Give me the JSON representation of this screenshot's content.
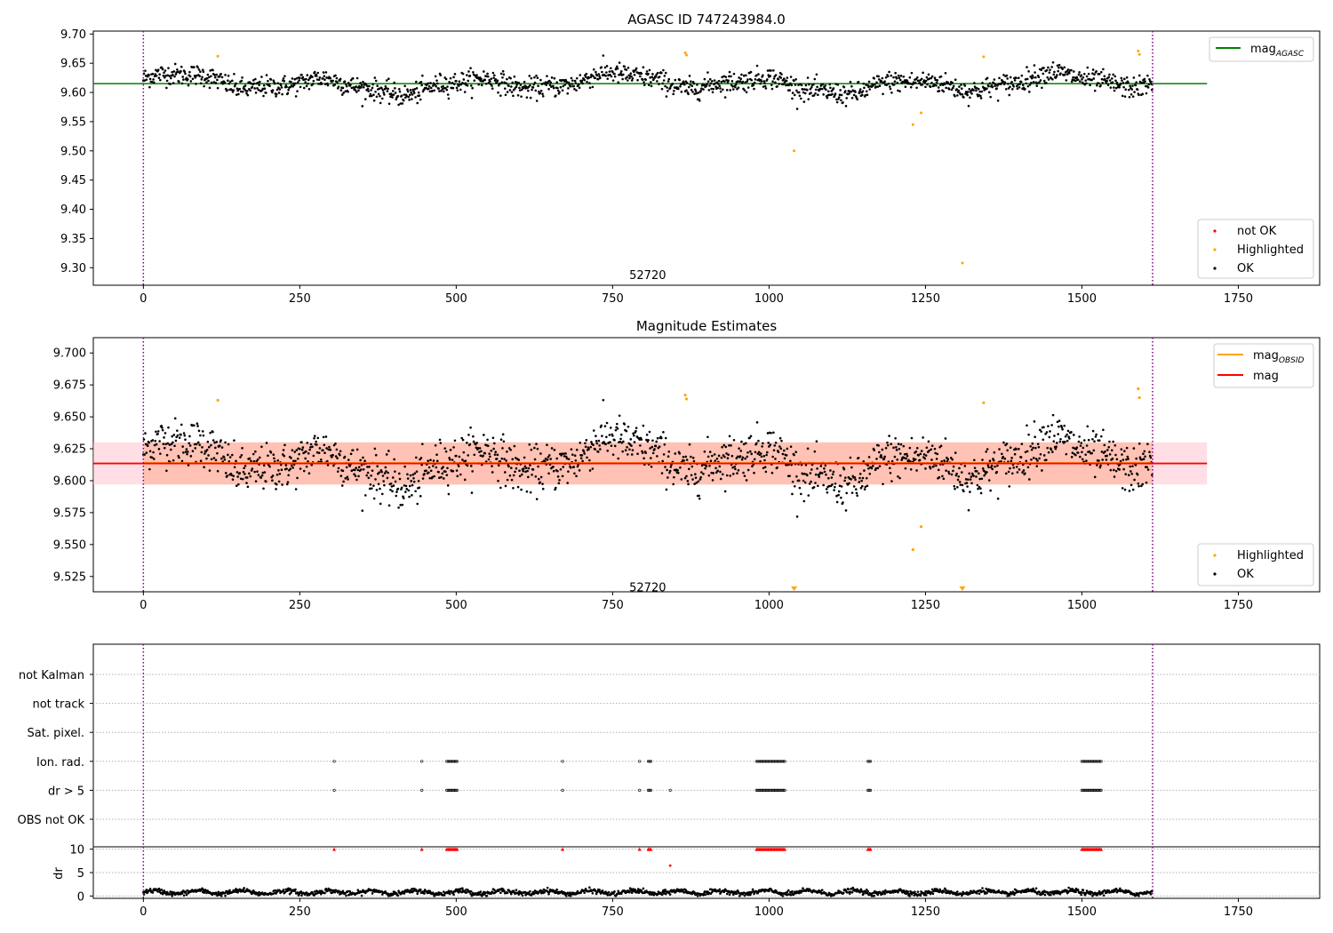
{
  "figure": {
    "background": "#ffffff"
  },
  "chart_data": [
    {
      "type": "scatter",
      "title": "AGASC ID 747243984.0",
      "xlim": [
        -80,
        1880
      ],
      "ylim": [
        9.27,
        9.705
      ],
      "xticks": [
        0,
        250,
        500,
        750,
        1000,
        1250,
        1500,
        1750
      ],
      "yticks": [
        9.3,
        9.35,
        9.4,
        9.45,
        9.5,
        9.55,
        9.6,
        9.65,
        9.7
      ],
      "ytick_labels": [
        "9.30",
        "9.35",
        "9.40",
        "9.45",
        "9.50",
        "9.55",
        "9.60",
        "9.65",
        "9.70"
      ],
      "vlines": [
        0,
        1613
      ],
      "vline_color": "#800080",
      "annotation": {
        "text": "52720",
        "x": 806,
        "y": 9.285
      },
      "line": {
        "name": "mag$_{AGASC}$",
        "label_main": "mag",
        "label_sub": "AGASC",
        "y": 9.615,
        "x": [
          -80,
          1700
        ],
        "color": "#008000"
      },
      "ok_series": {
        "name": "OK",
        "color": "#000000",
        "n": 1613,
        "mean": 9.615,
        "amp": 0.018,
        "noise": 0.009
      },
      "highlighted": {
        "name": "Highlighted",
        "color": "#ffa500",
        "x": [
          119,
          866,
          868,
          1040,
          1230,
          1243,
          1309,
          1343,
          1590,
          1592
        ],
        "y": [
          9.662,
          9.668,
          9.664,
          9.5,
          9.545,
          9.565,
          9.308,
          9.661,
          9.671,
          9.665
        ]
      },
      "not_ok": {
        "name": "not OK",
        "color": "#ff0000"
      },
      "legend_top": [
        "mag_AGASC"
      ],
      "legend_bottom": [
        "not OK",
        "Highlighted",
        "OK"
      ],
      "legend_top_location": "upper right",
      "legend_bottom_location": "lower right"
    },
    {
      "type": "scatter",
      "title": "Magnitude Estimates",
      "xlim": [
        -80,
        1880
      ],
      "ylim": [
        9.513,
        9.712
      ],
      "xticks": [
        0,
        250,
        500,
        750,
        1000,
        1250,
        1500,
        1750
      ],
      "yticks": [
        9.525,
        9.55,
        9.575,
        9.6,
        9.625,
        9.65,
        9.675,
        9.7
      ],
      "ytick_labels": [
        "9.525",
        "9.550",
        "9.575",
        "9.600",
        "9.625",
        "9.650",
        "9.675",
        "9.700"
      ],
      "vlines": [
        0,
        1613
      ],
      "annotation": {
        "text": "52720",
        "x": 806,
        "y": 9.519
      },
      "band_obsid": {
        "y0": 9.597,
        "y1": 9.63,
        "x": [
          -80,
          1700
        ],
        "color": "#ffc0cb",
        "opacity": 0.5
      },
      "band_mag": {
        "y0": 9.597,
        "y1": 9.63,
        "x": [
          0,
          1613
        ],
        "color": "#ffa07a",
        "opacity": 0.45
      },
      "line_obsid": {
        "name": "mag$_{OBSID}$",
        "label_main": "mag",
        "label_sub": "OBSID",
        "y": 9.614,
        "x": [
          0,
          1613
        ],
        "color": "#ffa500"
      },
      "line_mag": {
        "name": "mag",
        "y": 9.6135,
        "x": [
          -80,
          1700
        ],
        "color": "#ff0000"
      },
      "highlighted": {
        "name": "Highlighted",
        "color": "#ffa500",
        "x": [
          119,
          866,
          868,
          1230,
          1243,
          1343,
          1590,
          1592
        ],
        "y": [
          9.663,
          9.667,
          9.664,
          9.546,
          9.564,
          9.661,
          9.672,
          9.665
        ]
      },
      "clipped_markers": {
        "x": [
          1040,
          1309
        ],
        "color": "#ffa500"
      },
      "legend_top": [
        "mag_OBSID",
        "mag"
      ],
      "legend_bottom": [
        "Highlighted",
        "OK"
      ],
      "legend_top_location": "upper right",
      "legend_bottom_location": "lower right"
    },
    {
      "type": "scatter",
      "title": "",
      "xlim": [
        -80,
        1880
      ],
      "xticks": [
        0,
        250,
        500,
        750,
        1000,
        1250,
        1500,
        1750
      ],
      "vlines": [
        0,
        1613
      ],
      "flag_rows": [
        "not Kalman",
        "not track",
        "Sat. pixel.",
        "Ion. rad.",
        "dr > 5",
        "OBS not OK"
      ],
      "flag_clusters": [
        {
          "start": 305,
          "count": 1
        },
        {
          "start": 445,
          "count": 1
        },
        {
          "start": 485,
          "count": 9
        },
        {
          "start": 670,
          "count": 1
        },
        {
          "start": 793,
          "count": 1
        },
        {
          "start": 807,
          "count": 3
        },
        {
          "start": 980,
          "count": 23
        },
        {
          "start": 1158,
          "count": 3
        },
        {
          "start": 1500,
          "count": 16
        }
      ],
      "dr_extra_flag_x": 842,
      "dr_panel": {
        "ylabel": "dr",
        "ylim": [
          -0.5,
          10.5
        ],
        "yticks": [
          0,
          5,
          10
        ],
        "ytick_labels": [
          "0",
          "5",
          "10"
        ],
        "base": 0.8,
        "outliers": {
          "x": [
            842
          ],
          "y": [
            6.5
          ]
        },
        "clipped_color": "#ff0000"
      }
    }
  ]
}
